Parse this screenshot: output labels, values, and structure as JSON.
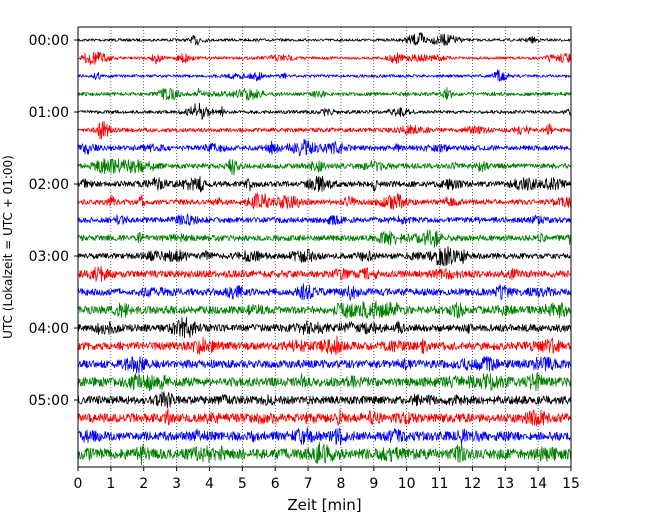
{
  "chart_data": {
    "type": "line",
    "subtype": "helicorder",
    "xlabel": "Zeit  [min]",
    "ylabel": "UTC (Lokalzeit = UTC + 01:00)",
    "xlim": [
      0,
      15
    ],
    "x_ticks": [
      0,
      1,
      2,
      3,
      4,
      5,
      6,
      7,
      8,
      9,
      10,
      11,
      12,
      13,
      14,
      15
    ],
    "y_tick_labels": [
      "00:00",
      "01:00",
      "02:00",
      "03:00",
      "04:00",
      "05:00"
    ],
    "lines_per_hour": 4,
    "minutes_per_line": 15,
    "line_count": 24,
    "line_colors": [
      "#000000",
      "#ff0000",
      "#0000ff",
      "#008000"
    ],
    "x_grid": "dotted",
    "y_grid": false,
    "legend": "none"
  }
}
